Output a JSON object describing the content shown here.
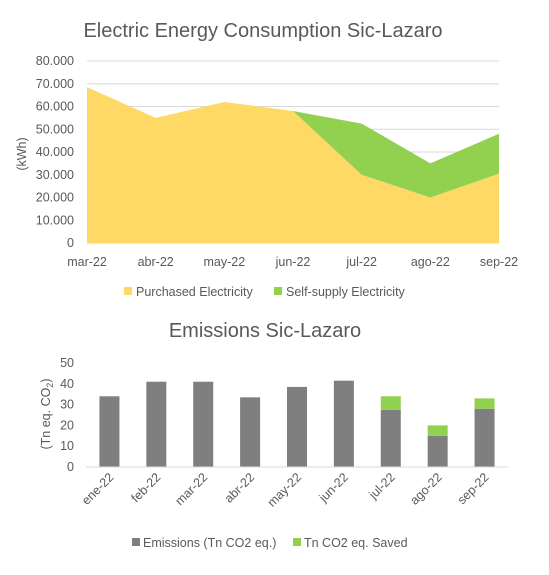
{
  "chart_data": [
    {
      "type": "area",
      "title": "Electric Energy Consumption Sic-Lazaro",
      "ylabel": "(kWh)",
      "xlabel": "",
      "ylim": [
        0,
        80000
      ],
      "y_ticks": [
        "0",
        "10.000",
        "20.000",
        "30.000",
        "40.000",
        "50.000",
        "60.000",
        "70.000",
        "80.000"
      ],
      "categories": [
        "mar-22",
        "abr-22",
        "may-22",
        "jun-22",
        "jul-22",
        "ago-22",
        "sep-22"
      ],
      "stacked": true,
      "grid": true,
      "legend_position": "bottom",
      "series": [
        {
          "name": "Purchased Electricity",
          "color": "#FFD966",
          "values": [
            68500,
            55000,
            62000,
            58000,
            30000,
            20000,
            30500
          ]
        },
        {
          "name": "Self-supply Electricity",
          "color": "#92D050",
          "values": [
            0,
            0,
            0,
            0,
            22500,
            15000,
            17500
          ]
        }
      ]
    },
    {
      "type": "bar",
      "title": "Emissions Sic-Lazaro",
      "ylabel": "(Tn eq. CO2)",
      "xlabel": "",
      "ylim": [
        0,
        50
      ],
      "y_ticks": [
        "0",
        "10",
        "20",
        "30",
        "40",
        "50"
      ],
      "categories": [
        "ene-22",
        "feb-22",
        "mar-22",
        "abr-22",
        "may-22",
        "jun-22",
        "jul-22",
        "ago-22",
        "sep-22"
      ],
      "stacked": true,
      "grid": false,
      "legend_position": "bottom",
      "series": [
        {
          "name": "Emissions (Tn CO2 eq.)",
          "color": "#7F7F7F",
          "values": [
            34,
            41,
            41,
            33.5,
            38.5,
            41.5,
            27.5,
            15,
            28
          ]
        },
        {
          "name": "Tn CO2 eq. Saved",
          "color": "#92D050",
          "values": [
            0,
            0,
            0,
            0,
            0,
            0,
            6.5,
            5,
            5
          ]
        }
      ]
    }
  ]
}
